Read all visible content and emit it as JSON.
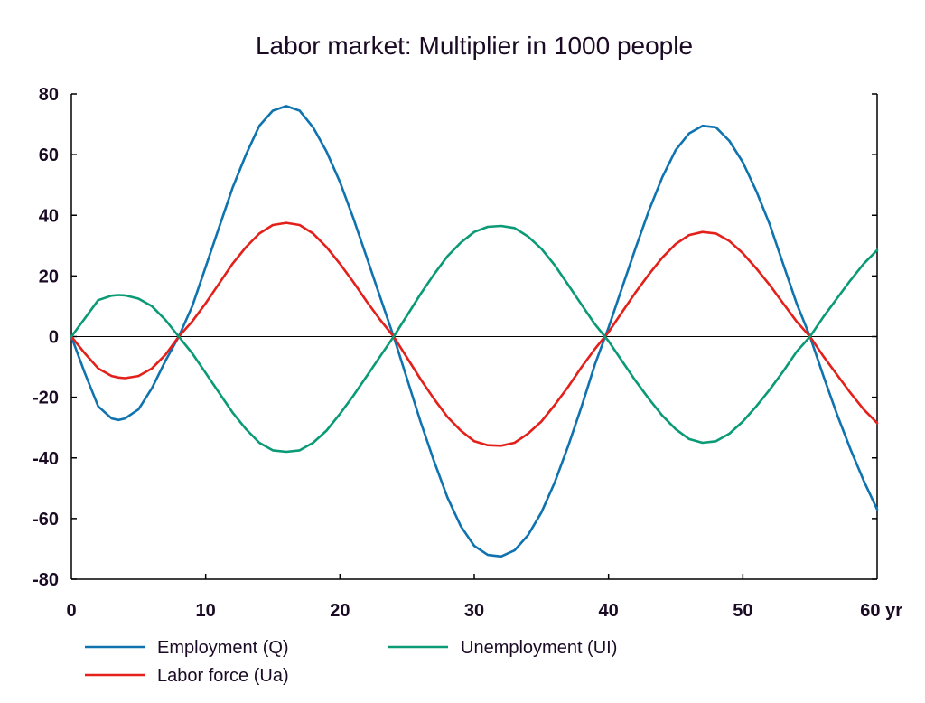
{
  "chart_data": {
    "type": "line",
    "title": "Labor market: Multiplier in 1000 people",
    "xlabel": "",
    "ylabel": "",
    "x_unit_label": "yr",
    "xlim": [
      0,
      60
    ],
    "ylim": [
      -80,
      80
    ],
    "x_ticks": [
      0,
      10,
      20,
      30,
      40,
      50,
      60
    ],
    "x_tick_labels": [
      "0",
      "10",
      "20",
      "30",
      "40",
      "50",
      "60 yr"
    ],
    "y_ticks": [
      80,
      60,
      40,
      20,
      0,
      -20,
      -40,
      -60,
      -80
    ],
    "y_tick_labels": [
      "80",
      "60",
      "40",
      "20",
      "0",
      "-20",
      "-40",
      "-60",
      "-80"
    ],
    "grid": false,
    "zero_line": true,
    "legend_position": "bottom",
    "x": [
      0,
      1,
      2,
      3,
      3.5,
      4,
      5,
      6,
      7,
      8,
      9,
      10,
      11,
      12,
      13,
      14,
      15,
      16,
      17,
      18,
      19,
      20,
      21,
      22,
      23,
      24,
      25,
      26,
      27,
      28,
      29,
      30,
      31,
      32,
      33,
      34,
      35,
      36,
      37,
      38,
      39,
      40,
      41,
      42,
      43,
      44,
      45,
      46,
      47,
      48,
      49,
      50,
      51,
      52,
      53,
      54,
      55,
      56,
      57,
      58,
      59,
      60
    ],
    "series": [
      {
        "name": "Employment (Q)",
        "color": "#0f73b0",
        "values": [
          0,
          -12,
          -23,
          -27,
          -27.5,
          -27,
          -24,
          -17,
          -8,
          0,
          10,
          23,
          36,
          49,
          60,
          69.5,
          74.5,
          76,
          74.5,
          69,
          61,
          51,
          39,
          26,
          13,
          0,
          -14,
          -28,
          -41,
          -53,
          -62.5,
          -69,
          -72,
          -72.5,
          -70.5,
          -65.5,
          -58,
          -48,
          -36,
          -23,
          -9,
          3,
          16,
          29,
          41.5,
          52.5,
          61.5,
          67,
          69.5,
          69,
          64.5,
          57.5,
          48,
          37,
          24,
          11,
          0,
          -13,
          -25.5,
          -37,
          -47.5,
          -57
        ]
      },
      {
        "name": "Labor force (Ua)",
        "color": "#e3201a",
        "values": [
          0,
          -5.5,
          -10.5,
          -13,
          -13.5,
          -13.7,
          -13,
          -10.5,
          -6,
          0,
          5,
          11,
          17.5,
          24,
          29.5,
          34,
          36.8,
          37.5,
          36.8,
          34,
          29.5,
          24,
          18,
          11.5,
          5.5,
          0,
          -7,
          -14,
          -20.5,
          -26.5,
          -31,
          -34.5,
          -35.8,
          -36,
          -35,
          -32,
          -28,
          -22.5,
          -16.5,
          -10,
          -4,
          1.5,
          8,
          14.5,
          20.5,
          26,
          30.5,
          33.5,
          34.5,
          34,
          31.5,
          27.5,
          22.5,
          17,
          11,
          5,
          0,
          -6.5,
          -12.5,
          -18.5,
          -24,
          -28.5
        ]
      },
      {
        "name": "Unemployment (UI)",
        "color": "#0a9a76",
        "values": [
          0,
          6,
          12,
          13.5,
          13.7,
          13.6,
          12.5,
          10,
          5.5,
          0,
          -5.5,
          -12,
          -18.5,
          -25,
          -30.5,
          -35,
          -37.5,
          -38,
          -37.5,
          -35,
          -31,
          -25.5,
          -19.5,
          -13,
          -6.5,
          0,
          7,
          14,
          20.5,
          26.5,
          31,
          34.5,
          36.2,
          36.5,
          35.8,
          33,
          29,
          23.5,
          17,
          10.5,
          4,
          -1.5,
          -8,
          -14.5,
          -20.5,
          -26,
          -30.5,
          -33.8,
          -35,
          -34.5,
          -32,
          -28,
          -23,
          -17.5,
          -11.5,
          -5,
          0,
          6.5,
          12.5,
          18.5,
          24,
          28.5
        ]
      }
    ]
  }
}
